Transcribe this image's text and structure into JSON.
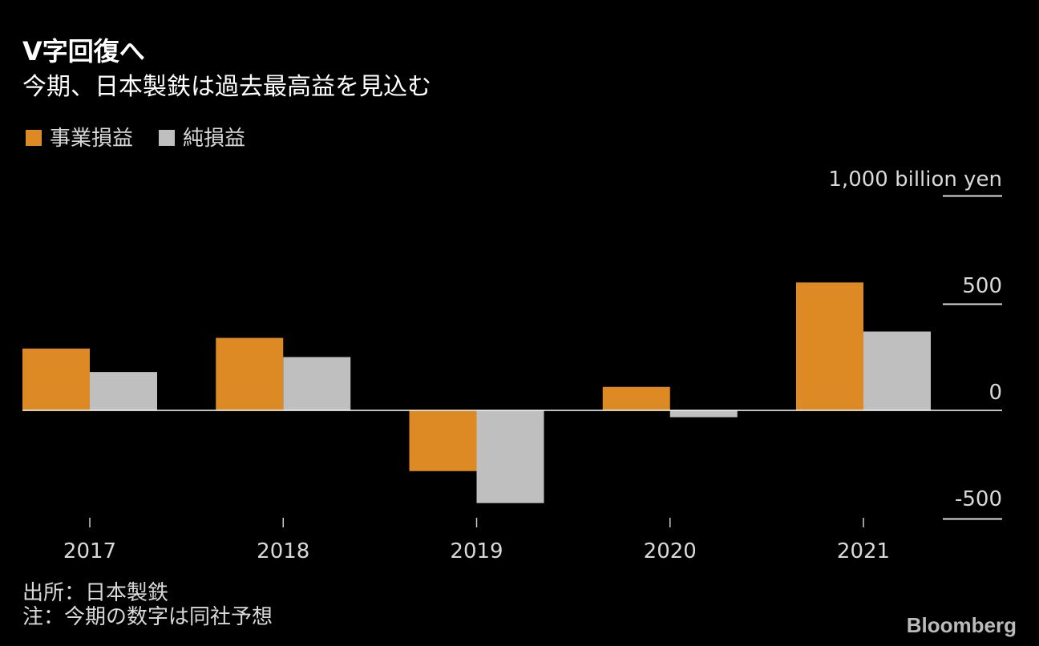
{
  "chart_data": {
    "type": "bar",
    "title": "V字回復へ",
    "subtitle": "今期、日本製鉄は過去最高益を見込む",
    "categories": [
      "2017",
      "2018",
      "2019",
      "2020",
      "2021"
    ],
    "series": [
      {
        "name": "事業損益",
        "color": "#dd8a24",
        "values": [
          290,
          340,
          -285,
          110,
          600
        ]
      },
      {
        "name": "純損益",
        "color": "#bfbfbf",
        "values": [
          180,
          250,
          -435,
          -32,
          370
        ]
      }
    ],
    "ylabel": "1,000 billion yen",
    "yticks": [
      {
        "value": 1000,
        "label": "1,000 billion yen"
      },
      {
        "value": 500,
        "label": "500"
      },
      {
        "value": 0,
        "label": "0"
      },
      {
        "value": -500,
        "label": "-500"
      }
    ],
    "ylim": [
      -500,
      1000
    ],
    "legend": "top-left",
    "grid": false
  },
  "footer": {
    "source": "出所：日本製鉄",
    "note": "注：今期の数字は同社予想",
    "logo": "Bloomberg"
  }
}
